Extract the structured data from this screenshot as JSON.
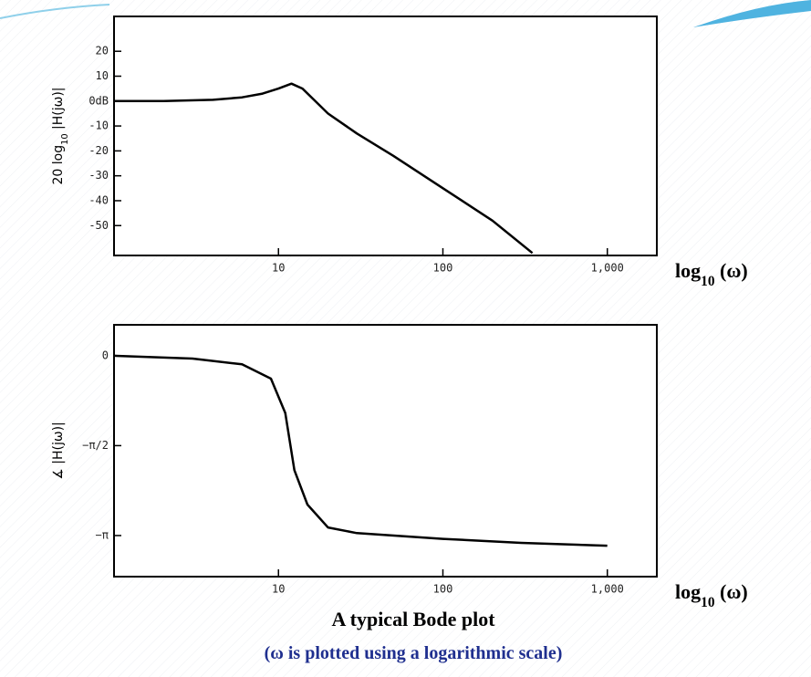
{
  "chart_data": [
    {
      "type": "line",
      "log_x": true,
      "color": "#000000",
      "ylabel": {
        "pre": "20 log",
        "sub": "10",
        "rest": " |H(jω)|"
      },
      "xlabel": {
        "base": "log",
        "sub": "10",
        "rest": " (ω)"
      },
      "x": [
        1,
        2,
        4,
        6,
        8,
        10,
        12,
        14,
        20,
        30,
        50,
        100,
        200,
        350
      ],
      "values": [
        0,
        0,
        0.5,
        1.5,
        3,
        5,
        7,
        5,
        -5,
        -13,
        -22,
        -35,
        -48,
        -61
      ],
      "xlim": [
        1,
        2000
      ],
      "ylim": [
        -62,
        34
      ],
      "xticks": [
        10,
        100,
        {
          "value": 1000,
          "label": "1,000"
        }
      ],
      "yticks": [
        20,
        10,
        {
          "value": 0,
          "label": "0dB"
        },
        -10,
        -20,
        -30,
        -40,
        -50
      ]
    },
    {
      "type": "line",
      "log_x": true,
      "color": "#000000",
      "ylabel": {
        "pre": "∡ |H(jω)|"
      },
      "xlabel": {
        "base": "log",
        "sub": "10",
        "rest": " (ω)"
      },
      "x": [
        1,
        3,
        6,
        9,
        11,
        12.5,
        15,
        20,
        30,
        100,
        300,
        1000
      ],
      "values": [
        0,
        -0.05,
        -0.15,
        -0.4,
        -1.0,
        -2.0,
        -2.6,
        -3.0,
        -3.1,
        -3.2,
        -3.27,
        -3.32
      ],
      "xlim": [
        1,
        2000
      ],
      "ylim": [
        -3.86,
        0.54
      ],
      "xticks": [
        10,
        100,
        {
          "value": 1000,
          "label": "1,000"
        }
      ],
      "yticks": [
        0,
        {
          "value": -1.571,
          "label": "−π/2"
        },
        {
          "value": -3.142,
          "label": "−π"
        }
      ]
    }
  ],
  "caption": {
    "title": "A typical Bode plot",
    "subtitle": "(ω is plotted using a logarithmic scale)"
  }
}
